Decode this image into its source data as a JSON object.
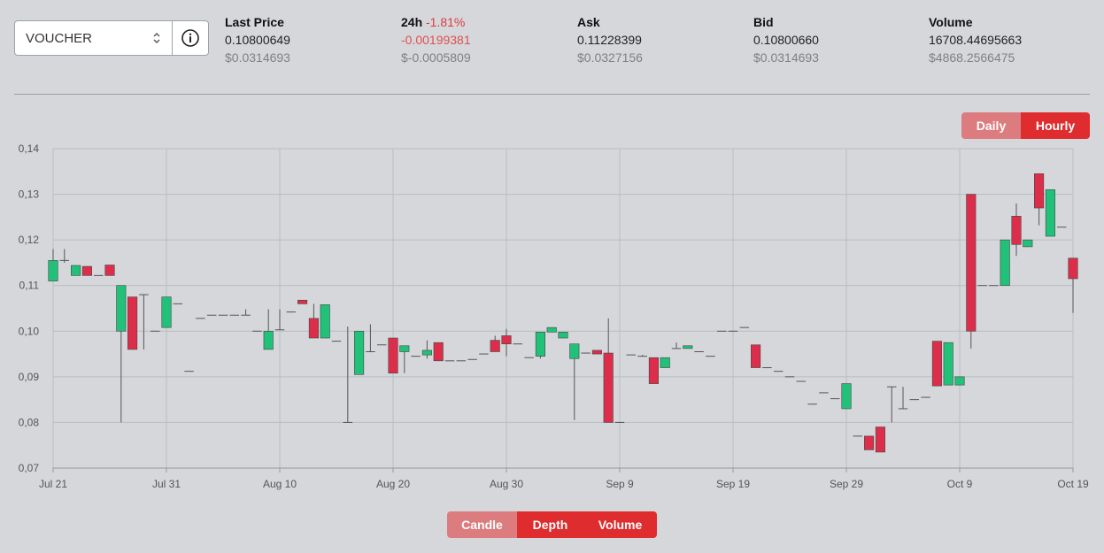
{
  "market": {
    "selected": "VOUCHER"
  },
  "stats": {
    "last_price": {
      "label": "Last Price",
      "value": "0.10800649",
      "usd": "$0.0314693"
    },
    "change": {
      "label": "24h",
      "pct": "-1.81%",
      "value": "-0.00199381",
      "usd": "$-0.0005809"
    },
    "ask": {
      "label": "Ask",
      "value": "0.11228399",
      "usd": "$0.0327156"
    },
    "bid": {
      "label": "Bid",
      "value": "0.10800660",
      "usd": "$0.0314693"
    },
    "volume": {
      "label": "Volume",
      "value": "16708.44695663",
      "usd": "$4868.2566475"
    }
  },
  "interval": {
    "daily": "Daily",
    "hourly": "Hourly",
    "active": "hourly"
  },
  "view": {
    "candle": "Candle",
    "depth": "Depth",
    "volume": "Volume"
  },
  "colors": {
    "up": "#21c17a",
    "down": "#dc2e4a",
    "wick": "#555555",
    "grid": "#b9bcc1",
    "accent": "#df2c2f"
  },
  "chart_data": {
    "type": "candlestick",
    "grid": true,
    "ylim": [
      0.07,
      0.14
    ],
    "yticks": [
      "0,07",
      "0,08",
      "0,09",
      "0,10",
      "0,11",
      "0,12",
      "0,13",
      "0,14"
    ],
    "xlim": [
      "2023-07-21",
      "2023-10-19"
    ],
    "xticks": [
      "Jul 21",
      "Jul 31",
      "Aug 10",
      "Aug 20",
      "Aug 30",
      "Sep 9",
      "Sep 19",
      "Sep 29",
      "Oct 9",
      "Oct 19"
    ],
    "series": [
      {
        "t": 0,
        "o": 0.111,
        "c": 0.1155,
        "h": 0.118,
        "l": 0.111
      },
      {
        "t": 1,
        "o": 0.1155,
        "c": 0.1155,
        "h": 0.118,
        "l": 0.115
      },
      {
        "t": 2,
        "o": 0.1122,
        "c": 0.1144,
        "h": 0.1144,
        "l": 0.1122
      },
      {
        "t": 3,
        "o": 0.1142,
        "c": 0.1122,
        "h": 0.1142,
        "l": 0.1122
      },
      {
        "t": 4,
        "o": 0.1122,
        "c": 0.1122,
        "h": 0.1122,
        "l": 0.1122
      },
      {
        "t": 5,
        "o": 0.1145,
        "c": 0.1122,
        "h": 0.1145,
        "l": 0.1122
      },
      {
        "t": 6,
        "o": 0.1,
        "c": 0.11,
        "h": 0.11,
        "l": 0.08
      },
      {
        "t": 7,
        "o": 0.1075,
        "c": 0.096,
        "h": 0.1075,
        "l": 0.096
      },
      {
        "t": 8,
        "o": 0.108,
        "c": 0.108,
        "h": 0.108,
        "l": 0.096
      },
      {
        "t": 9,
        "o": 0.1,
        "c": 0.1,
        "h": 0.1,
        "l": 0.1
      },
      {
        "t": 10,
        "o": 0.1008,
        "c": 0.1075,
        "h": 0.1075,
        "l": 0.1008
      },
      {
        "t": 11,
        "o": 0.106,
        "c": 0.106,
        "h": 0.106,
        "l": 0.106
      },
      {
        "t": 12,
        "o": 0.0912,
        "c": 0.0912,
        "h": 0.0912,
        "l": 0.0912
      },
      {
        "t": 13,
        "o": 0.1028,
        "c": 0.1028,
        "h": 0.1028,
        "l": 0.1028
      },
      {
        "t": 14,
        "o": 0.1035,
        "c": 0.1035,
        "h": 0.1035,
        "l": 0.1035
      },
      {
        "t": 15,
        "o": 0.1035,
        "c": 0.1035,
        "h": 0.1035,
        "l": 0.1035
      },
      {
        "t": 16,
        "o": 0.1035,
        "c": 0.1035,
        "h": 0.1035,
        "l": 0.1035
      },
      {
        "t": 17,
        "o": 0.1035,
        "c": 0.1035,
        "h": 0.1048,
        "l": 0.1035
      },
      {
        "t": 18,
        "o": 0.1,
        "c": 0.1,
        "h": 0.1,
        "l": 0.1
      },
      {
        "t": 19,
        "o": 0.096,
        "c": 0.1,
        "h": 0.1048,
        "l": 0.096
      },
      {
        "t": 20,
        "o": 0.1003,
        "c": 0.1003,
        "h": 0.1048,
        "l": 0.1003
      },
      {
        "t": 21,
        "o": 0.1042,
        "c": 0.1042,
        "h": 0.1042,
        "l": 0.1042
      },
      {
        "t": 22,
        "o": 0.1068,
        "c": 0.106,
        "h": 0.1068,
        "l": 0.106
      },
      {
        "t": 23,
        "o": 0.1028,
        "c": 0.0985,
        "h": 0.106,
        "l": 0.0985
      },
      {
        "t": 24,
        "o": 0.0985,
        "c": 0.1058,
        "h": 0.1058,
        "l": 0.0985
      },
      {
        "t": 25,
        "o": 0.0978,
        "c": 0.0978,
        "h": 0.0978,
        "l": 0.0978
      },
      {
        "t": 26,
        "o": 0.08,
        "c": 0.08,
        "h": 0.101,
        "l": 0.08
      },
      {
        "t": 27,
        "o": 0.0905,
        "c": 0.1,
        "h": 0.1,
        "l": 0.0905
      },
      {
        "t": 28,
        "o": 0.0955,
        "c": 0.0955,
        "h": 0.1015,
        "l": 0.0955
      },
      {
        "t": 29,
        "o": 0.097,
        "c": 0.097,
        "h": 0.097,
        "l": 0.097
      },
      {
        "t": 30,
        "o": 0.0985,
        "c": 0.0908,
        "h": 0.0985,
        "l": 0.0908
      },
      {
        "t": 31,
        "o": 0.0955,
        "c": 0.0968,
        "h": 0.0968,
        "l": 0.0908
      },
      {
        "t": 32,
        "o": 0.0945,
        "c": 0.0945,
        "h": 0.0945,
        "l": 0.0945
      },
      {
        "t": 33,
        "o": 0.0948,
        "c": 0.0958,
        "h": 0.098,
        "l": 0.094
      },
      {
        "t": 34,
        "o": 0.0975,
        "c": 0.0935,
        "h": 0.0975,
        "l": 0.0935
      },
      {
        "t": 35,
        "o": 0.0935,
        "c": 0.0935,
        "h": 0.0935,
        "l": 0.0935
      },
      {
        "t": 36,
        "o": 0.0935,
        "c": 0.0935,
        "h": 0.0935,
        "l": 0.0935
      },
      {
        "t": 37,
        "o": 0.0938,
        "c": 0.0938,
        "h": 0.0938,
        "l": 0.0938
      },
      {
        "t": 38,
        "o": 0.095,
        "c": 0.095,
        "h": 0.095,
        "l": 0.095
      },
      {
        "t": 39,
        "o": 0.098,
        "c": 0.0955,
        "h": 0.099,
        "l": 0.0955
      },
      {
        "t": 40,
        "o": 0.099,
        "c": 0.0972,
        "h": 0.1005,
        "l": 0.0945
      },
      {
        "t": 41,
        "o": 0.0972,
        "c": 0.0972,
        "h": 0.0972,
        "l": 0.0972
      },
      {
        "t": 42,
        "o": 0.0942,
        "c": 0.0942,
        "h": 0.0942,
        "l": 0.0942
      },
      {
        "t": 43,
        "o": 0.0945,
        "c": 0.0998,
        "h": 0.0998,
        "l": 0.094
      },
      {
        "t": 44,
        "o": 0.0998,
        "c": 0.1008,
        "h": 0.1008,
        "l": 0.0998
      },
      {
        "t": 45,
        "o": 0.0985,
        "c": 0.0998,
        "h": 0.0998,
        "l": 0.0985
      },
      {
        "t": 46,
        "o": 0.094,
        "c": 0.0972,
        "h": 0.0972,
        "l": 0.0805
      },
      {
        "t": 47,
        "o": 0.0952,
        "c": 0.0952,
        "h": 0.0952,
        "l": 0.0952
      },
      {
        "t": 48,
        "o": 0.0958,
        "c": 0.095,
        "h": 0.0958,
        "l": 0.095
      },
      {
        "t": 49,
        "o": 0.0952,
        "c": 0.08,
        "h": 0.1028,
        "l": 0.08
      },
      {
        "t": 50,
        "o": 0.08,
        "c": 0.08,
        "h": 0.08,
        "l": 0.08
      },
      {
        "t": 51,
        "o": 0.0948,
        "c": 0.0948,
        "h": 0.0948,
        "l": 0.0948
      },
      {
        "t": 52,
        "o": 0.0945,
        "c": 0.0945,
        "h": 0.0948,
        "l": 0.0945
      },
      {
        "t": 53,
        "o": 0.0942,
        "c": 0.0885,
        "h": 0.0942,
        "l": 0.0885
      },
      {
        "t": 54,
        "o": 0.092,
        "c": 0.0942,
        "h": 0.0942,
        "l": 0.092
      },
      {
        "t": 55,
        "o": 0.0962,
        "c": 0.0962,
        "h": 0.0975,
        "l": 0.0962
      },
      {
        "t": 56,
        "o": 0.0962,
        "c": 0.0968,
        "h": 0.0968,
        "l": 0.0962
      },
      {
        "t": 57,
        "o": 0.0955,
        "c": 0.0955,
        "h": 0.0955,
        "l": 0.0955
      },
      {
        "t": 58,
        "o": 0.0945,
        "c": 0.0945,
        "h": 0.0945,
        "l": 0.0945
      },
      {
        "t": 59,
        "o": 0.1,
        "c": 0.1,
        "h": 0.1,
        "l": 0.1
      },
      {
        "t": 60,
        "o": 0.1,
        "c": 0.1,
        "h": 0.1,
        "l": 0.1
      },
      {
        "t": 61,
        "o": 0.1008,
        "c": 0.1008,
        "h": 0.1008,
        "l": 0.1008
      },
      {
        "t": 62,
        "o": 0.097,
        "c": 0.092,
        "h": 0.097,
        "l": 0.092
      },
      {
        "t": 63,
        "o": 0.092,
        "c": 0.092,
        "h": 0.092,
        "l": 0.092
      },
      {
        "t": 64,
        "o": 0.0912,
        "c": 0.0912,
        "h": 0.0912,
        "l": 0.0912
      },
      {
        "t": 65,
        "o": 0.09,
        "c": 0.09,
        "h": 0.09,
        "l": 0.09
      },
      {
        "t": 66,
        "o": 0.089,
        "c": 0.089,
        "h": 0.089,
        "l": 0.089
      },
      {
        "t": 67,
        "o": 0.084,
        "c": 0.084,
        "h": 0.084,
        "l": 0.084
      },
      {
        "t": 68,
        "o": 0.0865,
        "c": 0.0865,
        "h": 0.0865,
        "l": 0.0865
      },
      {
        "t": 69,
        "o": 0.0852,
        "c": 0.0852,
        "h": 0.0852,
        "l": 0.0852
      },
      {
        "t": 70,
        "o": 0.083,
        "c": 0.0885,
        "h": 0.0885,
        "l": 0.083
      },
      {
        "t": 71,
        "o": 0.077,
        "c": 0.077,
        "h": 0.077,
        "l": 0.077
      },
      {
        "t": 72,
        "o": 0.077,
        "c": 0.074,
        "h": 0.077,
        "l": 0.074
      },
      {
        "t": 73,
        "o": 0.079,
        "c": 0.0735,
        "h": 0.079,
        "l": 0.0735
      },
      {
        "t": 74,
        "o": 0.0878,
        "c": 0.0878,
        "h": 0.0878,
        "l": 0.08
      },
      {
        "t": 75,
        "o": 0.083,
        "c": 0.083,
        "h": 0.0878,
        "l": 0.083
      },
      {
        "t": 76,
        "o": 0.085,
        "c": 0.085,
        "h": 0.085,
        "l": 0.085
      },
      {
        "t": 77,
        "o": 0.0855,
        "c": 0.0855,
        "h": 0.0855,
        "l": 0.0855
      },
      {
        "t": 78,
        "o": 0.0978,
        "c": 0.088,
        "h": 0.0978,
        "l": 0.088
      },
      {
        "t": 79,
        "o": 0.0882,
        "c": 0.0975,
        "h": 0.0975,
        "l": 0.0882
      },
      {
        "t": 80,
        "o": 0.0882,
        "c": 0.09,
        "h": 0.09,
        "l": 0.0882
      },
      {
        "t": 81,
        "o": 0.13,
        "c": 0.1,
        "h": 0.13,
        "l": 0.0962
      },
      {
        "t": 82,
        "o": 0.11,
        "c": 0.11,
        "h": 0.11,
        "l": 0.11
      },
      {
        "t": 83,
        "o": 0.11,
        "c": 0.11,
        "h": 0.11,
        "l": 0.11
      },
      {
        "t": 84,
        "o": 0.11,
        "c": 0.12,
        "h": 0.12,
        "l": 0.11
      },
      {
        "t": 85,
        "o": 0.1252,
        "c": 0.119,
        "h": 0.128,
        "l": 0.1165
      },
      {
        "t": 86,
        "o": 0.1185,
        "c": 0.12,
        "h": 0.12,
        "l": 0.1185
      },
      {
        "t": 87,
        "o": 0.1345,
        "c": 0.127,
        "h": 0.1345,
        "l": 0.1232
      },
      {
        "t": 88,
        "o": 0.1208,
        "c": 0.131,
        "h": 0.131,
        "l": 0.1208
      },
      {
        "t": 89,
        "o": 0.1228,
        "c": 0.1228,
        "h": 0.1228,
        "l": 0.1228
      },
      {
        "t": 90,
        "o": 0.116,
        "c": 0.1115,
        "h": 0.116,
        "l": 0.104
      }
    ]
  }
}
